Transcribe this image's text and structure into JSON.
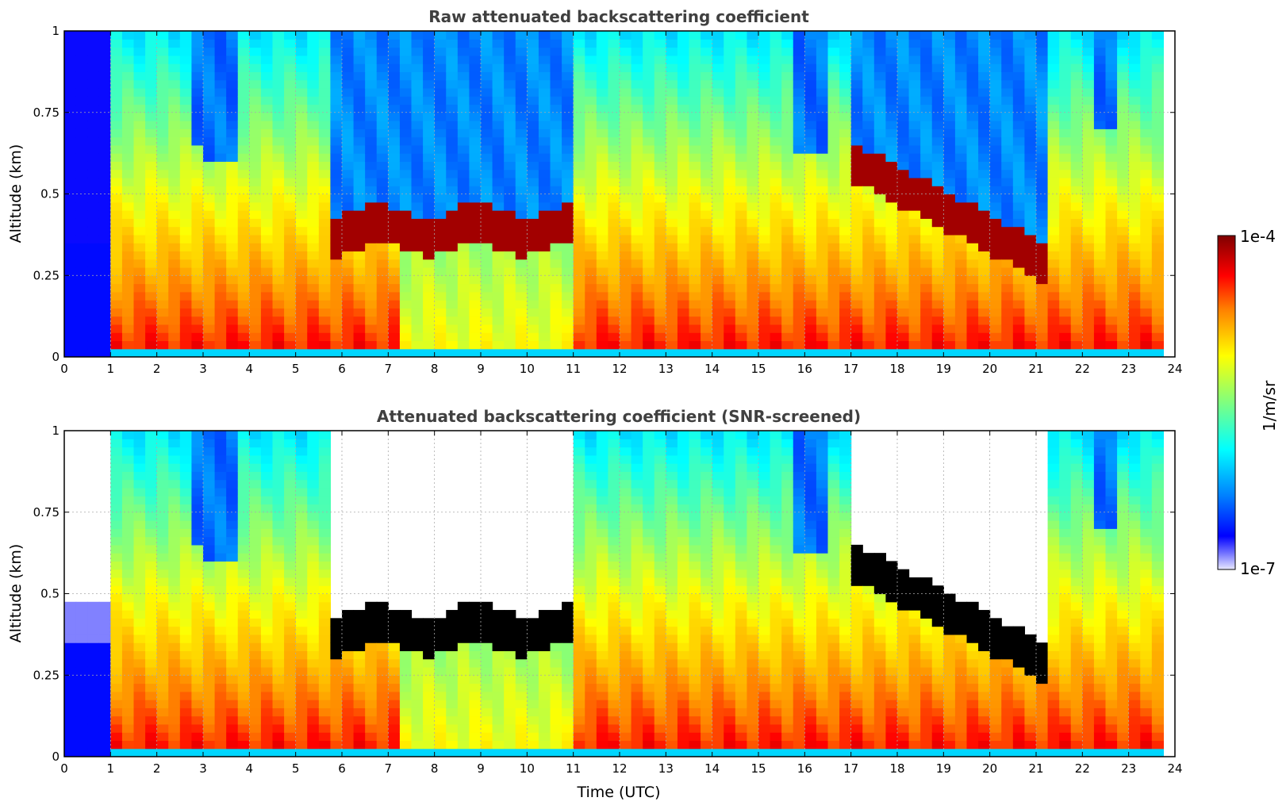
{
  "chart_data": [
    {
      "type": "heatmap",
      "title": "Raw attenuated backscattering coefficient",
      "xlabel": "",
      "ylabel": "Altitude (km)",
      "xlim": [
        0,
        24
      ],
      "ylim": [
        0,
        1
      ],
      "x_ticks": [
        "0",
        "1",
        "2",
        "3",
        "4",
        "5",
        "6",
        "7",
        "8",
        "9",
        "10",
        "11",
        "12",
        "13",
        "14",
        "15",
        "16",
        "17",
        "18",
        "19",
        "20",
        "21",
        "22",
        "23",
        "24"
      ],
      "y_ticks": [
        "0",
        "0.25",
        "0.5",
        "0.75",
        "1"
      ],
      "grid": true,
      "data_end_time": 23.75,
      "cloud_base_km": [
        {
          "from": 5.7,
          "to": 11.1,
          "base": 0.33,
          "top": 0.48
        },
        {
          "from": 16.9,
          "to": 21.1,
          "base_start": 0.55,
          "base_end": 0.23
        }
      ],
      "colorscale": "jet",
      "zlabel": "1/m/sr"
    },
    {
      "type": "heatmap",
      "title": "Attenuated backscattering coefficient (SNR-screened)",
      "xlabel": "Time (UTC)",
      "ylabel": "Altitude (km)",
      "xlim": [
        0,
        24
      ],
      "ylim": [
        0,
        1
      ],
      "x_ticks": [
        "0",
        "1",
        "2",
        "3",
        "4",
        "5",
        "6",
        "7",
        "8",
        "9",
        "10",
        "11",
        "12",
        "13",
        "14",
        "15",
        "16",
        "17",
        "18",
        "19",
        "20",
        "21",
        "22",
        "23",
        "24"
      ],
      "y_ticks": [
        "0",
        "0.25",
        "0.5",
        "0.75",
        "1"
      ],
      "grid": true,
      "data_end_time": 23.75,
      "colorscale": "jet",
      "zlabel": "1/m/sr"
    }
  ],
  "colorbar": {
    "max_label": "1e-4",
    "min_label": "1e-7",
    "unit_label": "1/m/sr",
    "stops": [
      "#7f0000",
      "#ff0000",
      "#ff7f00",
      "#ffff00",
      "#7fff7f",
      "#00ffff",
      "#007fff",
      "#0000ff",
      "#3030ff",
      "#e8e8ff"
    ]
  }
}
